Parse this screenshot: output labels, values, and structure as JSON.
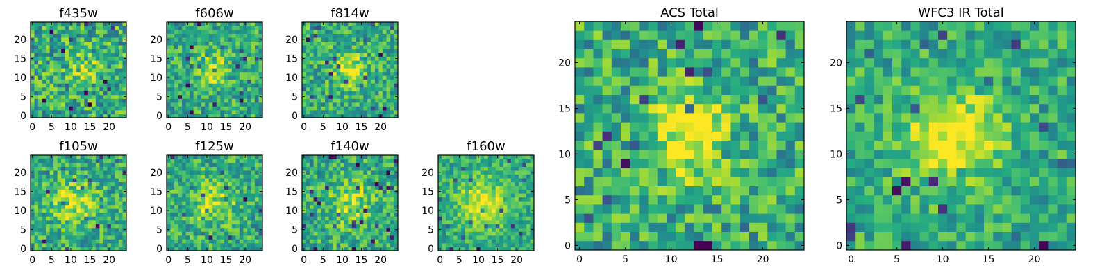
{
  "chart_data": [
    {
      "type": "heatmap",
      "title": "f435w",
      "xlim": [
        0,
        24
      ],
      "ylim": [
        0,
        24
      ],
      "xticks": [
        0,
        5,
        10,
        15,
        20
      ],
      "yticks": [
        0,
        5,
        10,
        15,
        20
      ],
      "colormap": "viridis",
      "grid_size": [
        25,
        25
      ]
    },
    {
      "type": "heatmap",
      "title": "f606w",
      "xlim": [
        0,
        24
      ],
      "ylim": [
        0,
        24
      ],
      "xticks": [
        0,
        5,
        10,
        15,
        20
      ],
      "yticks": [
        0,
        5,
        10,
        15,
        20
      ],
      "colormap": "viridis",
      "grid_size": [
        25,
        25
      ]
    },
    {
      "type": "heatmap",
      "title": "f814w",
      "xlim": [
        0,
        24
      ],
      "ylim": [
        0,
        24
      ],
      "xticks": [
        0,
        5,
        10,
        15,
        20
      ],
      "yticks": [
        0,
        5,
        10,
        15,
        20
      ],
      "colormap": "viridis",
      "grid_size": [
        25,
        25
      ]
    },
    {
      "type": "heatmap",
      "title": "f105w",
      "xlim": [
        0,
        24
      ],
      "ylim": [
        0,
        24
      ],
      "xticks": [
        0,
        5,
        10,
        15,
        20
      ],
      "yticks": [
        0,
        5,
        10,
        15,
        20
      ],
      "colormap": "viridis",
      "grid_size": [
        25,
        25
      ]
    },
    {
      "type": "heatmap",
      "title": "f125w",
      "xlim": [
        0,
        24
      ],
      "ylim": [
        0,
        24
      ],
      "xticks": [
        0,
        5,
        10,
        15,
        20
      ],
      "yticks": [
        0,
        5,
        10,
        15,
        20
      ],
      "colormap": "viridis",
      "grid_size": [
        25,
        25
      ]
    },
    {
      "type": "heatmap",
      "title": "f140w",
      "xlim": [
        0,
        24
      ],
      "ylim": [
        0,
        24
      ],
      "xticks": [
        0,
        5,
        10,
        15,
        20
      ],
      "yticks": [
        0,
        5,
        10,
        15,
        20
      ],
      "colormap": "viridis",
      "grid_size": [
        25,
        25
      ]
    },
    {
      "type": "heatmap",
      "title": "f160w",
      "xlim": [
        0,
        24
      ],
      "ylim": [
        0,
        24
      ],
      "xticks": [
        0,
        5,
        10,
        15,
        20
      ],
      "yticks": [
        0,
        5,
        10,
        15,
        20
      ],
      "colormap": "viridis",
      "grid_size": [
        25,
        25
      ]
    },
    {
      "type": "heatmap",
      "title": "ACS Total",
      "xlim": [
        0,
        24
      ],
      "ylim": [
        0,
        24
      ],
      "xticks": [
        0,
        5,
        10,
        15,
        20
      ],
      "yticks": [
        0,
        5,
        10,
        15,
        20
      ],
      "colormap": "viridis",
      "grid_size": [
        25,
        25
      ]
    },
    {
      "type": "heatmap",
      "title": "WFC3 IR Total",
      "xlim": [
        0,
        24
      ],
      "ylim": [
        0,
        24
      ],
      "xticks": [
        0,
        5,
        10,
        15,
        20
      ],
      "yticks": [
        0,
        5,
        10,
        15,
        20
      ],
      "colormap": "viridis",
      "grid_size": [
        25,
        25
      ]
    }
  ],
  "colors": {
    "viridis_low": "#440154",
    "viridis_mid": "#21918c",
    "viridis_high": "#fde725"
  }
}
